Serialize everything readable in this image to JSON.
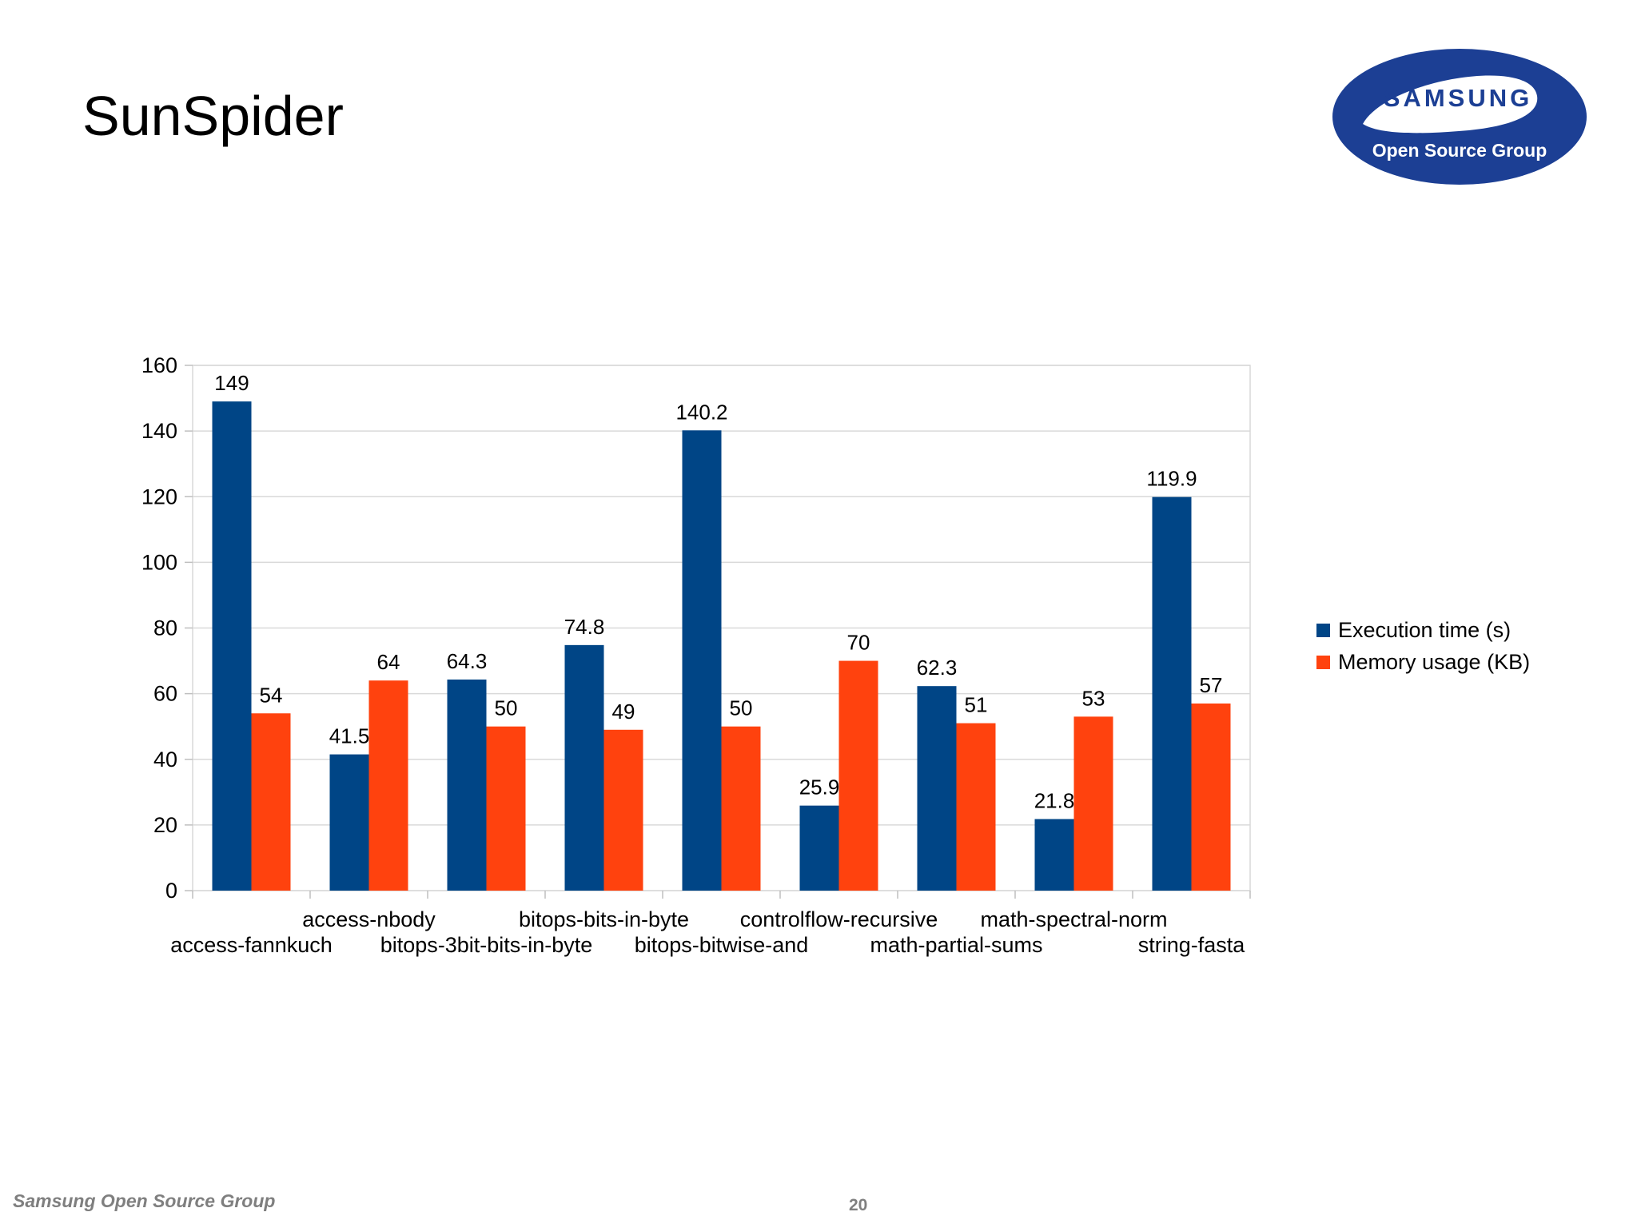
{
  "slide": {
    "title": "SunSpider",
    "footer_org": "Samsung Open Source Group",
    "page_number": "20"
  },
  "logo": {
    "brand": "SAMSUNG",
    "subtitle": "Open Source Group",
    "color": "#1c3f94"
  },
  "chart_data": {
    "type": "bar",
    "categories": [
      "access-fannkuch",
      "access-nbody",
      "bitops-3bit-bits-in-byte",
      "bitops-bits-in-byte",
      "bitops-bitwise-and",
      "controlflow-recursive",
      "math-partial-sums",
      "math-spectral-norm",
      "string-fasta"
    ],
    "series": [
      {
        "name": "Execution time (s)",
        "color": "#004586",
        "values": [
          149,
          41.5,
          64.3,
          74.8,
          140.2,
          25.9,
          62.3,
          21.8,
          119.9
        ]
      },
      {
        "name": "Memory usage (KB)",
        "color": "#ff420e",
        "values": [
          54,
          64,
          50,
          49,
          50,
          70,
          51,
          53,
          57
        ]
      }
    ],
    "ylim": [
      0,
      160
    ],
    "yticks": [
      0,
      20,
      40,
      60,
      80,
      100,
      120,
      140,
      160
    ],
    "grid": true,
    "legend_position": "right"
  }
}
